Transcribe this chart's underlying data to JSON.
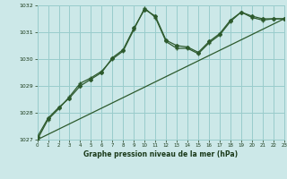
{
  "title": "Graphe pression niveau de la mer (hPa)",
  "background_color": "#cce8e8",
  "grid_color": "#99cccc",
  "line_color": "#2d5a2d",
  "x_min": 0,
  "x_max": 23,
  "y_min": 1027,
  "y_max": 1032,
  "series1": {
    "x": [
      0,
      1,
      2,
      3,
      4,
      5,
      6,
      7,
      8,
      9,
      10,
      11,
      12,
      13,
      14,
      15,
      16,
      17,
      18,
      19,
      20,
      21,
      22,
      23
    ],
    "y": [
      1027.1,
      1027.8,
      1028.2,
      1028.55,
      1029.0,
      1029.25,
      1029.5,
      1030.05,
      1030.35,
      1031.15,
      1031.85,
      1031.6,
      1030.7,
      1030.5,
      1030.45,
      1030.25,
      1030.65,
      1030.95,
      1031.45,
      1031.75,
      1031.6,
      1031.5,
      1031.5,
      1031.5
    ]
  },
  "series2": {
    "x": [
      0,
      1,
      2,
      3,
      4,
      5,
      6,
      7,
      8,
      9,
      10,
      11,
      12,
      13,
      14,
      15,
      16,
      17,
      18,
      19,
      20,
      21,
      22,
      23
    ],
    "y": [
      1027.0,
      1027.75,
      1028.15,
      1028.6,
      1029.1,
      1029.3,
      1029.55,
      1030.0,
      1030.3,
      1031.1,
      1031.9,
      1031.55,
      1030.65,
      1030.4,
      1030.4,
      1030.2,
      1030.6,
      1030.9,
      1031.4,
      1031.75,
      1031.55,
      1031.45,
      1031.5,
      1031.5
    ]
  },
  "series3": {
    "x": [
      0,
      23
    ],
    "y": [
      1027.0,
      1031.5
    ]
  },
  "x_ticks": [
    0,
    1,
    2,
    3,
    4,
    5,
    6,
    7,
    8,
    9,
    10,
    11,
    12,
    13,
    14,
    15,
    16,
    17,
    18,
    19,
    20,
    21,
    22,
    23
  ],
  "y_ticks": [
    1027,
    1028,
    1029,
    1030,
    1031,
    1032
  ]
}
